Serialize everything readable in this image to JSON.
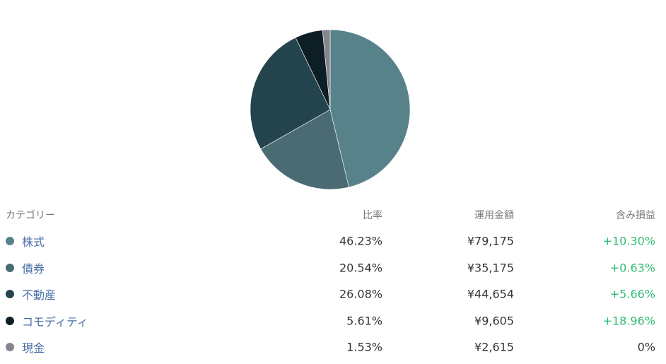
{
  "chart_data": {
    "type": "pie",
    "categories": [
      "株式",
      "債券",
      "不動産",
      "コモディティ",
      "現金"
    ],
    "values": [
      46.23,
      20.54,
      26.08,
      5.61,
      1.53
    ],
    "value_labels": [
      "46.23%",
      "20.54%",
      "26.08%",
      "5.61%",
      "1.53%"
    ],
    "colors": [
      "#58828a",
      "#4a6b73",
      "#23444d",
      "#0d1e24",
      "#86848f"
    ]
  },
  "table": {
    "headers": [
      "カテゴリー",
      "比率",
      "運用金額",
      "含み損益"
    ],
    "amounts": [
      "¥79,175",
      "¥35,175",
      "¥44,654",
      "¥9,605",
      "¥2,615"
    ],
    "gains": [
      "+10.30%",
      "+0.63%",
      "+5.66%",
      "+18.96%",
      "0%"
    ],
    "gain_colors": [
      "#2dba73",
      "#2dba73",
      "#2dba73",
      "#2dba73",
      "#333333"
    ]
  }
}
